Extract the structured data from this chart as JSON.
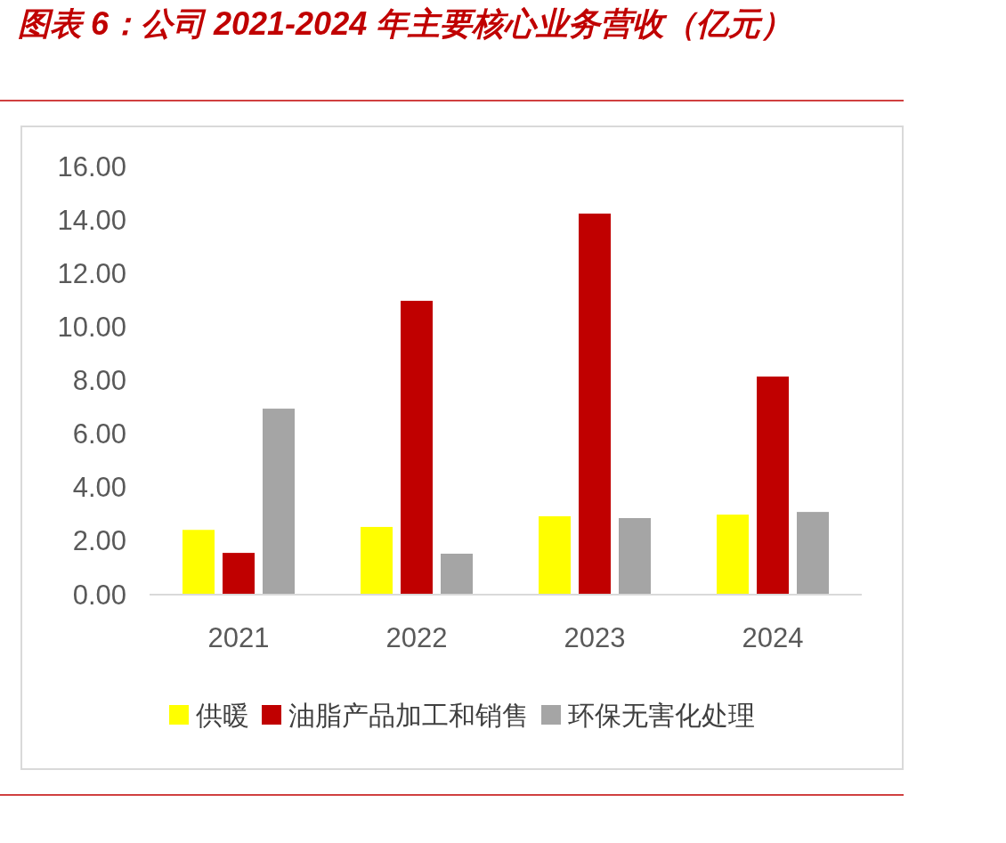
{
  "chart_data": {
    "type": "bar",
    "title": "图表 6：公司 2021-2024 年主要核心业务营收（亿元）",
    "categories": [
      "2021",
      "2022",
      "2023",
      "2024"
    ],
    "series": [
      {
        "name": "供暖",
        "color": "#ffff00",
        "values": [
          2.42,
          2.53,
          2.93,
          2.99
        ]
      },
      {
        "name": "油脂产品加工和销售",
        "color": "#c00000",
        "values": [
          1.56,
          10.98,
          14.24,
          8.15
        ]
      },
      {
        "name": "环保无害化处理",
        "color": "#a5a5a5",
        "values": [
          6.95,
          1.53,
          2.86,
          3.09
        ]
      }
    ],
    "ylim": [
      0,
      16
    ],
    "yticks": [
      {
        "value": 0,
        "label": "0.00"
      },
      {
        "value": 2,
        "label": "2.00"
      },
      {
        "value": 4,
        "label": "4.00"
      },
      {
        "value": 6,
        "label": "6.00"
      },
      {
        "value": 8,
        "label": "8.00"
      },
      {
        "value": 10,
        "label": "10.00"
      },
      {
        "value": 12,
        "label": "12.00"
      },
      {
        "value": 14,
        "label": "14.00"
      },
      {
        "value": 16,
        "label": "16.00"
      }
    ],
    "legend": "bottom"
  }
}
